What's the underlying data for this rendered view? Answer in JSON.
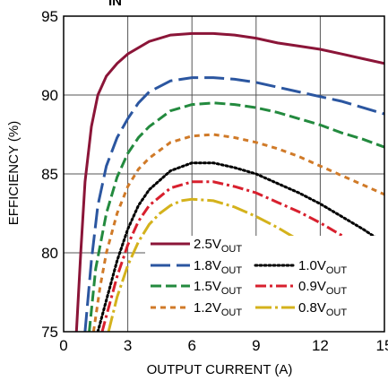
{
  "chart_data": {
    "type": "line",
    "top_text_fragment": "IN",
    "xlabel": "OUTPUT CURRENT (A)",
    "ylabel": "EFFICIENCY (%)",
    "xlim": [
      0,
      15
    ],
    "ylim": [
      75,
      95
    ],
    "x_ticks": [
      0,
      3,
      6,
      9,
      12,
      15
    ],
    "y_ticks": [
      75,
      80,
      85,
      90,
      95
    ],
    "x_tick_labels": [
      "0",
      "3",
      "6",
      "9",
      "12",
      "15"
    ],
    "y_tick_labels": [
      "75",
      "80",
      "85",
      "90",
      "95"
    ],
    "grid": true,
    "legend_position": "bottom-right",
    "series": [
      {
        "name": "2.5V",
        "name_sub": "OUT",
        "color": "#8b1538",
        "dash": "solid",
        "x": [
          0.6,
          0.8,
          1.0,
          1.3,
          1.6,
          2.0,
          2.5,
          3.0,
          4.0,
          5.0,
          6.0,
          7.0,
          8.0,
          9.0,
          10.0,
          11.0,
          12.0,
          13.0,
          14.0,
          15.0
        ],
        "y": [
          75.0,
          80.0,
          84.5,
          88.0,
          90.0,
          91.2,
          92.0,
          92.6,
          93.4,
          93.8,
          93.9,
          93.9,
          93.8,
          93.6,
          93.3,
          93.1,
          92.9,
          92.6,
          92.3,
          92.0
        ]
      },
      {
        "name": "1.8V",
        "name_sub": "OUT",
        "color": "#2b56a0",
        "dash": "long-dash",
        "x": [
          1.0,
          1.3,
          1.6,
          2.0,
          2.5,
          3.0,
          3.5,
          4.0,
          5.0,
          6.0,
          7.0,
          8.0,
          9.0,
          10.0,
          11.0,
          12.0,
          13.0,
          14.0,
          15.0
        ],
        "y": [
          75.0,
          79.5,
          83.0,
          85.5,
          87.3,
          88.5,
          89.5,
          90.2,
          90.9,
          91.1,
          91.1,
          91.0,
          90.8,
          90.5,
          90.2,
          89.9,
          89.6,
          89.2,
          88.8
        ]
      },
      {
        "name": "1.0V",
        "name_sub": "OUT",
        "color": "#000000",
        "dash": "dotted",
        "x": [
          1.6,
          2.0,
          2.5,
          3.0,
          3.5,
          4.0,
          5.0,
          6.0,
          7.0,
          8.0,
          9.0,
          10.0,
          11.0,
          12.0,
          13.0,
          14.0,
          15.0
        ],
        "y": [
          75.0,
          77.0,
          79.5,
          81.5,
          83.0,
          84.0,
          85.2,
          85.7,
          85.7,
          85.4,
          85.0,
          84.4,
          83.8,
          83.1,
          82.3,
          81.5,
          80.6
        ]
      },
      {
        "name": "1.5V",
        "name_sub": "OUT",
        "color": "#238a3e",
        "dash": "dash",
        "x": [
          1.2,
          1.5,
          2.0,
          2.5,
          3.0,
          3.5,
          4.0,
          5.0,
          6.0,
          7.0,
          8.0,
          9.0,
          10.0,
          11.0,
          12.0,
          13.0,
          14.0,
          15.0
        ],
        "y": [
          75.0,
          79.0,
          82.5,
          84.8,
          86.3,
          87.3,
          88.0,
          89.0,
          89.4,
          89.5,
          89.4,
          89.2,
          88.9,
          88.5,
          88.1,
          87.6,
          87.2,
          86.7
        ]
      },
      {
        "name": "0.9V",
        "name_sub": "OUT",
        "color": "#d8202e",
        "dash": "dash-dot",
        "x": [
          1.8,
          2.0,
          2.5,
          3.0,
          3.5,
          4.0,
          5.0,
          6.0,
          7.0,
          8.0,
          9.0,
          10.0,
          11.0,
          12.0,
          13.0,
          14.0,
          15.0
        ],
        "y": [
          75.0,
          76.0,
          78.5,
          80.5,
          82.0,
          83.0,
          84.1,
          84.5,
          84.5,
          84.2,
          83.8,
          83.2,
          82.6,
          81.9,
          81.1,
          80.3,
          79.4
        ]
      },
      {
        "name": "1.2V",
        "name_sub": "OUT",
        "color": "#d07a28",
        "dash": "short-dash",
        "x": [
          1.4,
          1.7,
          2.0,
          2.5,
          3.0,
          3.5,
          4.0,
          5.0,
          6.0,
          7.0,
          8.0,
          9.0,
          10.0,
          11.0,
          12.0,
          13.0,
          14.0,
          15.0
        ],
        "y": [
          75.0,
          77.8,
          80.0,
          82.5,
          84.2,
          85.3,
          86.0,
          87.0,
          87.4,
          87.5,
          87.3,
          87.0,
          86.6,
          86.1,
          85.5,
          84.9,
          84.3,
          83.7
        ]
      },
      {
        "name": "0.8V",
        "name_sub": "OUT",
        "color": "#d4b21c",
        "dash": "long-dash-dot",
        "x": [
          2.1,
          2.5,
          3.0,
          3.5,
          4.0,
          4.5,
          5.0,
          5.5,
          6.0,
          7.0,
          8.0,
          9.0,
          10.0,
          11.0,
          12.0,
          13.0,
          14.0,
          15.0
        ],
        "y": [
          75.0,
          77.2,
          79.2,
          80.7,
          81.8,
          82.5,
          83.0,
          83.3,
          83.4,
          83.3,
          82.9,
          82.3,
          81.6,
          80.8,
          80.0,
          79.1,
          78.2,
          77.3
        ]
      }
    ]
  }
}
